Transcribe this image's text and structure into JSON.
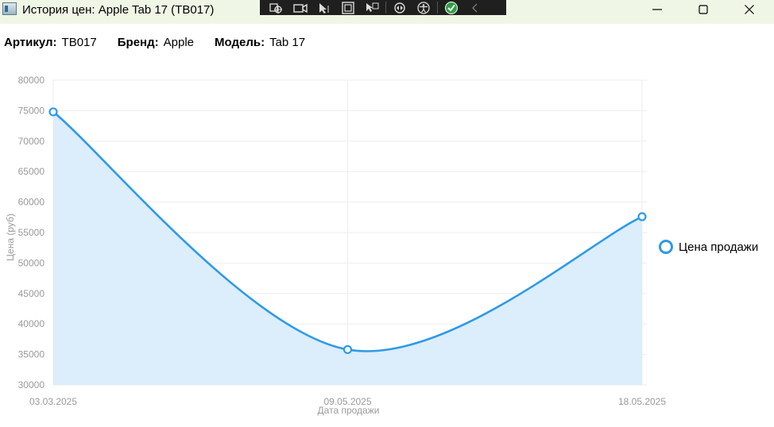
{
  "window": {
    "title": "История цен: Apple Tab 17 (TB017)"
  },
  "icons": {
    "app": "window-app-icon",
    "toolbar": [
      "select-element-icon",
      "live-visual-tree-icon",
      "camera-icon",
      "select-cursor-icon",
      "display-layout-adorners-icon",
      "track-focus-icon",
      "hot-reload-icon",
      "accessibility-icon",
      "binding-check-icon",
      "collapse-chevron-icon"
    ],
    "minimize": "minimize-icon",
    "maximize": "maximize-icon",
    "close": "close-icon"
  },
  "info": {
    "article_label": "Артикул:",
    "article_value": "TB017",
    "brand_label": "Бренд:",
    "brand_value": "Apple",
    "model_label": "Модель:",
    "model_value": "Tab 17"
  },
  "colors": {
    "series": "#2d9ae8",
    "area": "#dcedfb",
    "grid": "#eeeeee"
  },
  "chart_data": {
    "type": "area",
    "categories": [
      "03.03.2025",
      "09.05.2025",
      "18.05.2025"
    ],
    "series": [
      {
        "name": "Цена продажи",
        "values": [
          74800,
          35800,
          57600
        ]
      }
    ],
    "xlabel": "Дата продажи",
    "ylabel": "Цена (руб)",
    "ylim": [
      30000,
      80000
    ],
    "yticks": [
      30000,
      35000,
      40000,
      45000,
      50000,
      55000,
      60000,
      65000,
      70000,
      75000,
      80000
    ],
    "grid": true,
    "smooth": true,
    "legend_position": "right"
  }
}
